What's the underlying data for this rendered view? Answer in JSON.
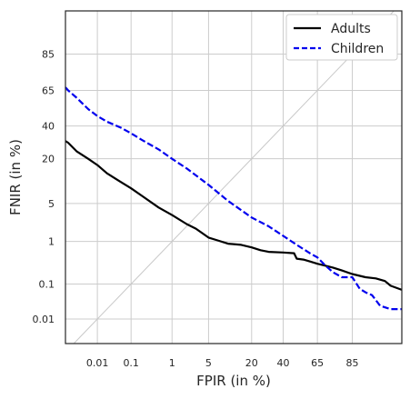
{
  "chart_data": {
    "type": "line",
    "scale": "normal-deviate (probit) on both axes",
    "xlabel": "FPIR (in %)",
    "ylabel": "FNIR (in %)",
    "xlim": [
      0.0008,
      97.5
    ],
    "ylim": [
      0.0016,
      96.5
    ],
    "x_ticks": [
      0.01,
      0.1,
      1,
      5,
      20,
      40,
      65,
      85
    ],
    "x_tick_labels": [
      "0.01",
      "0.1",
      "1",
      "5",
      "20",
      "40",
      "65",
      "85"
    ],
    "y_ticks": [
      0.01,
      0.1,
      1,
      5,
      20,
      40,
      65,
      85
    ],
    "y_tick_labels": [
      "0.01",
      "0.1",
      "1",
      "5",
      "20",
      "40",
      "65",
      "85"
    ],
    "grid": true,
    "legend_position": "top-right",
    "diagonal_reference": true,
    "series": [
      {
        "name": "Adults",
        "style": "solid",
        "color": "#000000",
        "x": [
          0.0008,
          0.001,
          0.002,
          0.005,
          0.01,
          0.02,
          0.05,
          0.1,
          0.2,
          0.5,
          1,
          2,
          3,
          5,
          7,
          10,
          15,
          20,
          25,
          30,
          40,
          48,
          50,
          55,
          60,
          65,
          70,
          75,
          80,
          85,
          90,
          93,
          95,
          96,
          97.5
        ],
        "y": [
          30,
          29,
          24,
          20,
          17,
          13.5,
          10.5,
          8.5,
          6.5,
          4.3,
          3.2,
          2.2,
          1.8,
          1.2,
          1.05,
          0.9,
          0.85,
          0.75,
          0.65,
          0.6,
          0.58,
          0.56,
          0.42,
          0.4,
          0.36,
          0.32,
          0.29,
          0.26,
          0.22,
          0.18,
          0.15,
          0.14,
          0.12,
          0.09,
          0.07
        ]
      },
      {
        "name": "Children",
        "style": "dashed",
        "color": "#0000ee",
        "x": [
          0.0008,
          0.001,
          0.002,
          0.005,
          0.01,
          0.02,
          0.05,
          0.1,
          0.2,
          0.5,
          1,
          2,
          5,
          10,
          20,
          30,
          40,
          50,
          60,
          65,
          70,
          75,
          80,
          85,
          88,
          90,
          92,
          94,
          96,
          97.5
        ],
        "y": [
          67,
          65,
          60,
          52,
          47,
          43,
          39,
          35,
          30.5,
          25,
          20,
          15.5,
          9.5,
          5.5,
          2.9,
          2,
          1.3,
          0.85,
          0.55,
          0.45,
          0.3,
          0.2,
          0.15,
          0.15,
          0.075,
          0.06,
          0.05,
          0.025,
          0.02,
          0.02
        ]
      }
    ]
  }
}
